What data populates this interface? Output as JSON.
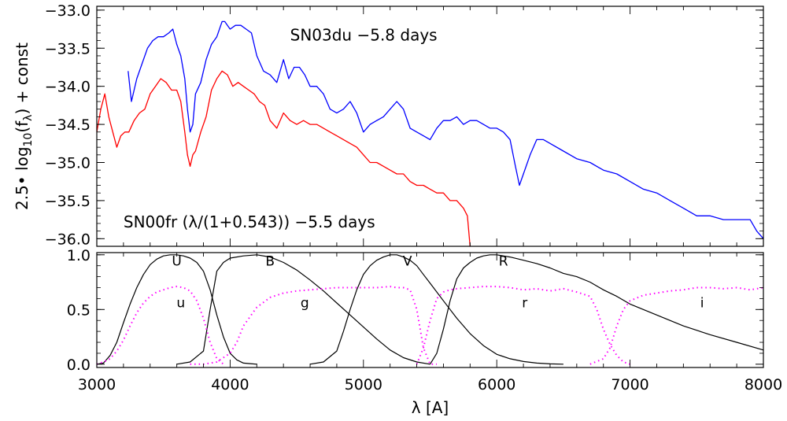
{
  "chart_data": [
    {
      "type": "line",
      "panel": "top",
      "ylabel_parts": {
        "a": "2.5• log",
        "sub1": "10",
        "b": "(f",
        "sub2": "λ",
        "c": ") + const"
      },
      "xlim": [
        3000,
        8000
      ],
      "ylim": [
        -36.1,
        -32.95
      ],
      "ytick_labels": [
        "−33.0",
        "−33.5",
        "−34.0",
        "−34.5",
        "−35.0",
        "−35.5",
        "−36.0"
      ],
      "ytick_values": [
        -33.0,
        -33.5,
        -34.0,
        -34.5,
        -35.0,
        -35.5,
        -36.0
      ],
      "annotations": [
        {
          "text": "SN03du  −5.8 days",
          "x": 4450,
          "y": -33.4
        },
        {
          "text": "SN00fr (λ/(1+0.543)) −5.5 days",
          "x": 3200,
          "y": -35.85
        }
      ],
      "series": [
        {
          "color": "#0000ff",
          "x": [
            3235,
            3260,
            3300,
            3340,
            3380,
            3420,
            3460,
            3500,
            3540,
            3570,
            3600,
            3630,
            3660,
            3680,
            3700,
            3720,
            3740,
            3780,
            3820,
            3860,
            3900,
            3940,
            3960,
            3980,
            4000,
            4040,
            4080,
            4120,
            4160,
            4200,
            4250,
            4300,
            4350,
            4400,
            4440,
            4480,
            4520,
            4560,
            4600,
            4650,
            4700,
            4750,
            4800,
            4850,
            4900,
            4950,
            5000,
            5050,
            5100,
            5150,
            5200,
            5250,
            5300,
            5350,
            5400,
            5450,
            5500,
            5550,
            5600,
            5650,
            5700,
            5750,
            5800,
            5850,
            5900,
            5950,
            6000,
            6050,
            6100,
            6140,
            6170,
            6200,
            6250,
            6300,
            6350,
            6400,
            6500,
            6600,
            6700,
            6800,
            6900,
            7000,
            7100,
            7200,
            7300,
            7400,
            7500,
            7600,
            7700,
            7800,
            7900,
            7950,
            8000
          ],
          "y": [
            -33.8,
            -34.2,
            -33.9,
            -33.7,
            -33.5,
            -33.4,
            -33.35,
            -33.35,
            -33.3,
            -33.25,
            -33.45,
            -33.6,
            -33.9,
            -34.3,
            -34.6,
            -34.5,
            -34.1,
            -33.95,
            -33.65,
            -33.45,
            -33.35,
            -33.15,
            -33.15,
            -33.2,
            -33.25,
            -33.2,
            -33.2,
            -33.25,
            -33.3,
            -33.6,
            -33.8,
            -33.85,
            -33.95,
            -33.65,
            -33.9,
            -33.75,
            -33.75,
            -33.85,
            -34.0,
            -34.0,
            -34.1,
            -34.3,
            -34.35,
            -34.3,
            -34.2,
            -34.35,
            -34.6,
            -34.5,
            -34.45,
            -34.4,
            -34.3,
            -34.2,
            -34.3,
            -34.55,
            -34.6,
            -34.65,
            -34.7,
            -34.55,
            -34.45,
            -34.45,
            -34.4,
            -34.5,
            -34.45,
            -34.45,
            -34.5,
            -34.55,
            -34.55,
            -34.6,
            -34.7,
            -35.05,
            -35.3,
            -35.15,
            -34.9,
            -34.7,
            -34.7,
            -34.75,
            -34.85,
            -34.95,
            -35.0,
            -35.1,
            -35.15,
            -35.25,
            -35.35,
            -35.4,
            -35.5,
            -35.6,
            -35.7,
            -35.7,
            -35.75,
            -35.75,
            -35.75,
            -35.9,
            -36.0
          ]
        },
        {
          "color": "#ff0000",
          "x": [
            3000,
            3030,
            3060,
            3090,
            3120,
            3150,
            3180,
            3210,
            3240,
            3280,
            3320,
            3360,
            3400,
            3440,
            3480,
            3520,
            3560,
            3600,
            3630,
            3660,
            3680,
            3700,
            3720,
            3740,
            3780,
            3820,
            3860,
            3900,
            3940,
            3980,
            4020,
            4060,
            4100,
            4140,
            4180,
            4220,
            4260,
            4300,
            4350,
            4400,
            4450,
            4500,
            4550,
            4600,
            4650,
            4700,
            4750,
            4800,
            4850,
            4900,
            4950,
            5000,
            5050,
            5100,
            5150,
            5200,
            5250,
            5300,
            5350,
            5400,
            5450,
            5500,
            5550,
            5600,
            5650,
            5700,
            5750,
            5780,
            5800
          ],
          "y": [
            -34.6,
            -34.3,
            -34.1,
            -34.4,
            -34.6,
            -34.8,
            -34.65,
            -34.6,
            -34.6,
            -34.45,
            -34.35,
            -34.3,
            -34.1,
            -34.0,
            -33.9,
            -33.95,
            -34.05,
            -34.05,
            -34.2,
            -34.6,
            -34.9,
            -35.05,
            -34.9,
            -34.85,
            -34.6,
            -34.4,
            -34.05,
            -33.9,
            -33.8,
            -33.85,
            -34.0,
            -33.95,
            -34.0,
            -34.05,
            -34.1,
            -34.2,
            -34.25,
            -34.45,
            -34.55,
            -34.35,
            -34.45,
            -34.5,
            -34.45,
            -34.5,
            -34.5,
            -34.55,
            -34.6,
            -34.65,
            -34.7,
            -34.75,
            -34.8,
            -34.9,
            -35.0,
            -35.0,
            -35.05,
            -35.1,
            -35.15,
            -35.15,
            -35.25,
            -35.3,
            -35.3,
            -35.35,
            -35.4,
            -35.4,
            -35.5,
            -35.5,
            -35.6,
            -35.7,
            -36.1
          ]
        }
      ]
    },
    {
      "type": "line",
      "panel": "bottom",
      "xlabel": "λ [A]",
      "xlim": [
        3000,
        8000
      ],
      "ylim": [
        -0.03,
        1.02
      ],
      "xtick_labels": [
        "3000",
        "4000",
        "5000",
        "6000",
        "7000",
        "8000"
      ],
      "xtick_values": [
        3000,
        4000,
        5000,
        6000,
        7000,
        8000
      ],
      "ytick_labels": [
        "0.0",
        "0.5",
        "1.0"
      ],
      "ytick_values": [
        0.0,
        0.5,
        1.0
      ],
      "filter_labels": [
        {
          "text": "U",
          "x": 3600,
          "y": 0.9
        },
        {
          "text": "B",
          "x": 4300,
          "y": 0.9
        },
        {
          "text": "V",
          "x": 5330,
          "y": 0.9
        },
        {
          "text": "R",
          "x": 6050,
          "y": 0.9
        },
        {
          "text": "u",
          "x": 3630,
          "y": 0.52
        },
        {
          "text": "g",
          "x": 4560,
          "y": 0.52
        },
        {
          "text": "r",
          "x": 6210,
          "y": 0.52
        },
        {
          "text": "i",
          "x": 7540,
          "y": 0.52
        }
      ],
      "series": [
        {
          "name": "U",
          "style": "solid",
          "color": "#000000",
          "x": [
            3000,
            3050,
            3100,
            3150,
            3200,
            3250,
            3300,
            3350,
            3400,
            3450,
            3500,
            3550,
            3600,
            3650,
            3700,
            3750,
            3800,
            3850,
            3900,
            3950,
            4000,
            4050,
            4100,
            4150,
            4200
          ],
          "y": [
            0.0,
            0.01,
            0.08,
            0.2,
            0.38,
            0.55,
            0.7,
            0.82,
            0.91,
            0.96,
            0.99,
            1.0,
            1.0,
            0.99,
            0.97,
            0.93,
            0.85,
            0.68,
            0.45,
            0.25,
            0.1,
            0.04,
            0.01,
            0.005,
            0.0
          ]
        },
        {
          "name": "B",
          "style": "solid",
          "color": "#000000",
          "x": [
            3600,
            3700,
            3800,
            3850,
            3900,
            3950,
            4000,
            4100,
            4200,
            4300,
            4400,
            4500,
            4600,
            4700,
            4800,
            4900,
            5000,
            5100,
            5200,
            5300,
            5400,
            5500
          ],
          "y": [
            0.0,
            0.02,
            0.12,
            0.5,
            0.85,
            0.93,
            0.97,
            0.99,
            1.0,
            0.98,
            0.93,
            0.86,
            0.77,
            0.67,
            0.56,
            0.45,
            0.34,
            0.23,
            0.13,
            0.06,
            0.02,
            0.0
          ]
        },
        {
          "name": "V",
          "style": "solid",
          "color": "#000000",
          "x": [
            4600,
            4700,
            4800,
            4850,
            4900,
            4950,
            5000,
            5050,
            5100,
            5150,
            5200,
            5250,
            5300,
            5350,
            5400,
            5450,
            5500,
            5600,
            5700,
            5800,
            5900,
            6000,
            6100,
            6200,
            6300,
            6400,
            6500
          ],
          "y": [
            0.0,
            0.02,
            0.12,
            0.3,
            0.5,
            0.68,
            0.82,
            0.9,
            0.95,
            0.98,
            1.0,
            1.0,
            0.98,
            0.95,
            0.9,
            0.82,
            0.74,
            0.58,
            0.42,
            0.28,
            0.17,
            0.09,
            0.05,
            0.025,
            0.01,
            0.003,
            0.0
          ]
        },
        {
          "name": "R",
          "style": "solid",
          "color": "#000000",
          "x": [
            5500,
            5550,
            5600,
            5650,
            5700,
            5750,
            5800,
            5850,
            5900,
            5950,
            6000,
            6100,
            6200,
            6300,
            6400,
            6500,
            6600,
            6700,
            6800,
            6900,
            7000,
            7200,
            7400,
            7600,
            7800,
            8000
          ],
          "y": [
            0.0,
            0.1,
            0.32,
            0.58,
            0.78,
            0.88,
            0.93,
            0.97,
            0.99,
            1.0,
            1.0,
            0.98,
            0.95,
            0.92,
            0.88,
            0.83,
            0.8,
            0.75,
            0.68,
            0.62,
            0.55,
            0.45,
            0.35,
            0.27,
            0.2,
            0.13
          ]
        },
        {
          "name": "u",
          "style": "dotted",
          "color": "#ff00ff",
          "x": [
            3000,
            3050,
            3100,
            3150,
            3200,
            3250,
            3300,
            3350,
            3400,
            3450,
            3500,
            3550,
            3600,
            3650,
            3700,
            3750,
            3800,
            3850,
            3900,
            3950
          ],
          "y": [
            0.0,
            0.02,
            0.05,
            0.12,
            0.22,
            0.35,
            0.47,
            0.56,
            0.62,
            0.66,
            0.68,
            0.7,
            0.71,
            0.7,
            0.67,
            0.58,
            0.42,
            0.2,
            0.05,
            0.0
          ]
        },
        {
          "name": "g",
          "style": "dotted",
          "color": "#ff00ff",
          "x": [
            3700,
            3800,
            3900,
            4000,
            4050,
            4100,
            4200,
            4300,
            4400,
            4500,
            4600,
            4700,
            4800,
            4900,
            5000,
            5100,
            5200,
            5250,
            5300,
            5350,
            5400,
            5450,
            5500,
            5550
          ],
          "y": [
            0.0,
            0.0,
            0.02,
            0.1,
            0.2,
            0.35,
            0.52,
            0.61,
            0.65,
            0.67,
            0.68,
            0.69,
            0.7,
            0.7,
            0.7,
            0.7,
            0.71,
            0.7,
            0.7,
            0.68,
            0.5,
            0.15,
            0.0,
            0.0
          ]
        },
        {
          "name": "r",
          "style": "dotted",
          "color": "#ff00ff",
          "x": [
            5400,
            5450,
            5500,
            5550,
            5600,
            5650,
            5700,
            5800,
            5900,
            6000,
            6100,
            6200,
            6300,
            6400,
            6500,
            6600,
            6700,
            6750,
            6800,
            6850,
            6900,
            6950,
            7000
          ],
          "y": [
            0.0,
            0.15,
            0.4,
            0.6,
            0.66,
            0.68,
            0.69,
            0.7,
            0.71,
            0.71,
            0.7,
            0.68,
            0.69,
            0.67,
            0.69,
            0.66,
            0.62,
            0.5,
            0.32,
            0.18,
            0.08,
            0.02,
            0.0
          ]
        },
        {
          "name": "i",
          "style": "dotted",
          "color": "#ff00ff",
          "x": [
            6700,
            6800,
            6850,
            6900,
            6950,
            7000,
            7100,
            7200,
            7300,
            7400,
            7500,
            7600,
            7700,
            7800,
            7900,
            8000
          ],
          "y": [
            0.0,
            0.05,
            0.15,
            0.35,
            0.5,
            0.58,
            0.63,
            0.65,
            0.67,
            0.68,
            0.7,
            0.7,
            0.69,
            0.7,
            0.68,
            0.7
          ]
        }
      ]
    }
  ]
}
